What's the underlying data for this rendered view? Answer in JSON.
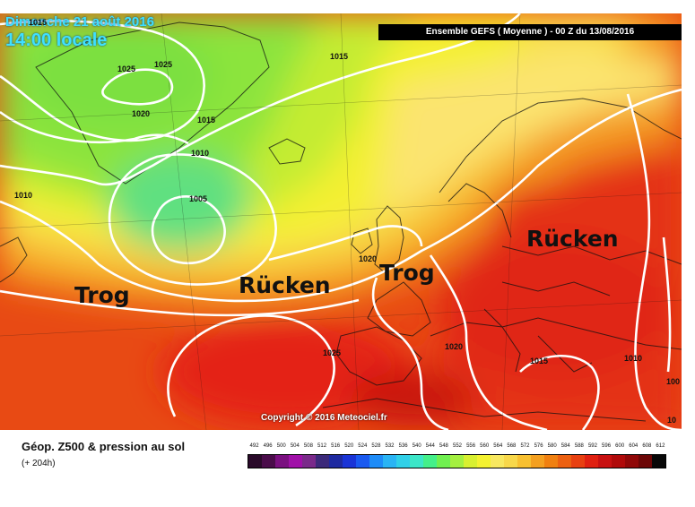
{
  "header": {
    "date": "Dimanche 21 août 2016",
    "time": "14:00 locale",
    "ensemble": "Ensemble GEFS  ( Moyenne )  -  00 Z du 13/08/2016"
  },
  "annotations": [
    {
      "id": "trog-west",
      "text": "Trog"
    },
    {
      "id": "ruecken-atlantic",
      "text": "Rücken"
    },
    {
      "id": "trog-britain",
      "text": "Trog"
    },
    {
      "id": "ruecken-europe",
      "text": "Rücken"
    }
  ],
  "isobar_labels": [
    "1015",
    "1025",
    "1025",
    "1020",
    "1015",
    "1010",
    "1005",
    "1010",
    "1015",
    "1020",
    "1020",
    "1025",
    "1015",
    "1010",
    "100",
    "10"
  ],
  "copyright": "Copyright © 2016 Meteociel.fr",
  "legend": {
    "title": "Géop. Z500 & pression au sol",
    "lead_time": "(+ 204h)",
    "ticks": [
      "492",
      "496",
      "500",
      "504",
      "508",
      "512",
      "516",
      "520",
      "524",
      "528",
      "532",
      "536",
      "540",
      "544",
      "548",
      "552",
      "556",
      "560",
      "564",
      "568",
      "572",
      "576",
      "580",
      "584",
      "588",
      "592",
      "596",
      "600",
      "604",
      "608",
      "612"
    ],
    "colors": [
      "#2a0a2a",
      "#4a0c4a",
      "#7a1080",
      "#a010a8",
      "#7a2a8a",
      "#3c2a7a",
      "#1e2aa0",
      "#1a34d6",
      "#1a5af0",
      "#1e8cf8",
      "#2ab4f4",
      "#30d0e8",
      "#3ce6c8",
      "#44f08a",
      "#70f050",
      "#a4f040",
      "#d8f030",
      "#f4f230",
      "#f8e860",
      "#f8d84a",
      "#f8c030",
      "#f4a020",
      "#f08010",
      "#ec6010",
      "#e84010",
      "#e02010",
      "#c81010",
      "#b00a0a",
      "#900808",
      "#6c0606",
      "#080808"
    ]
  }
}
